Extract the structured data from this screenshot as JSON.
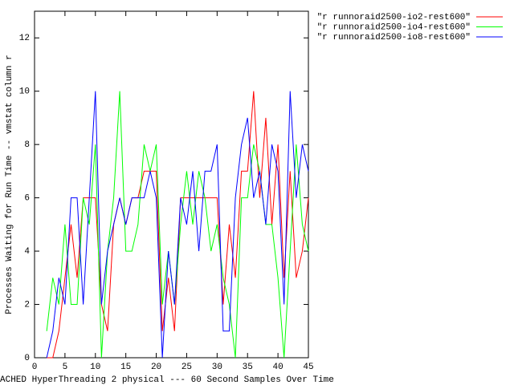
{
  "chart_data": {
    "type": "line",
    "xlabel": "ACHED HyperThreading 2 physical --- 60 Second Samples Over Time",
    "ylabel": "Processes Waiting for Run Time -- vmstat column r",
    "x": [
      2,
      3,
      4,
      5,
      6,
      7,
      8,
      9,
      10,
      11,
      12,
      13,
      14,
      15,
      16,
      17,
      18,
      19,
      20,
      21,
      22,
      23,
      24,
      25,
      26,
      27,
      28,
      29,
      30,
      31,
      32,
      33,
      34,
      35,
      36,
      37,
      38,
      39,
      40,
      41,
      42,
      43,
      44,
      45
    ],
    "series": [
      {
        "name": "\"r runnoraid2500-io2-rest600\"",
        "color": "#ff0000",
        "values": [
          0,
          0,
          1,
          3,
          5,
          3,
          6,
          6,
          6,
          2,
          1,
          5,
          6,
          5,
          6,
          6,
          7,
          7,
          7,
          1,
          3,
          1,
          6,
          6,
          6,
          6,
          6,
          6,
          6,
          2,
          5,
          3,
          7,
          7,
          10,
          6,
          9,
          5,
          8,
          3,
          7,
          3,
          4,
          6
        ]
      },
      {
        "name": "\"r runnoraid2500-io4-rest600\"",
        "color": "#00ff00",
        "values": [
          1,
          3,
          2,
          5,
          2,
          2,
          6,
          5,
          8,
          0,
          4,
          6,
          10,
          4,
          4,
          5,
          8,
          7,
          8,
          2,
          4,
          2,
          5,
          7,
          5,
          7,
          6,
          4,
          5,
          3,
          2,
          0,
          6,
          6,
          8,
          7,
          5,
          5,
          3,
          0,
          4,
          8,
          5,
          4
        ]
      },
      {
        "name": "\"r runnoraid2500-io8-rest600\"",
        "color": "#0000ff",
        "values": [
          0,
          1,
          3,
          2,
          6,
          6,
          2,
          6,
          10,
          2,
          4,
          5,
          6,
          5,
          6,
          6,
          6,
          7,
          6,
          0,
          4,
          2,
          6,
          5,
          7,
          4,
          7,
          7,
          8,
          1,
          1,
          6,
          8,
          9,
          6,
          7,
          5,
          8,
          7,
          2,
          10,
          6,
          8,
          7
        ]
      }
    ],
    "xlim": [
      0,
      45
    ],
    "xticks": [
      0,
      5,
      10,
      15,
      20,
      25,
      30,
      35,
      40,
      45
    ],
    "ylim": [
      0,
      13
    ],
    "yticks": [
      0,
      2,
      4,
      6,
      8,
      10,
      12
    ],
    "legend": "top-right"
  }
}
